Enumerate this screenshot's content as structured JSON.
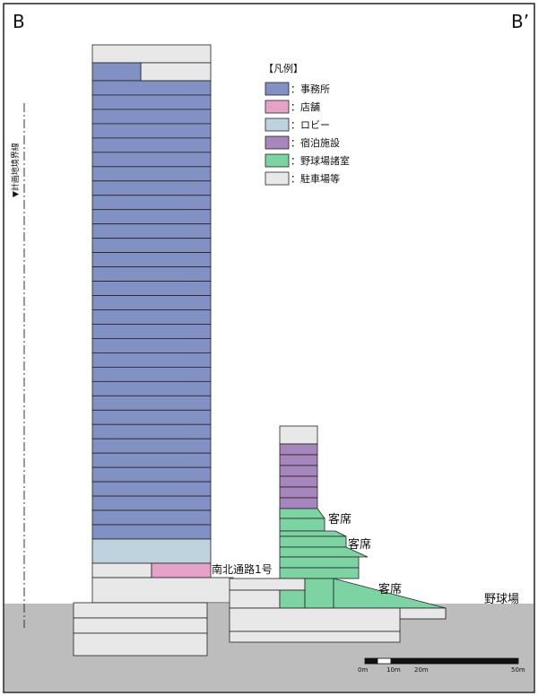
{
  "section": {
    "start_label": "B",
    "end_label": "B’"
  },
  "boundary_label": "▼計画地境界線",
  "legend": {
    "title": "【凡例】",
    "items": [
      {
        "label": "：事務所",
        "color": "#8191c4",
        "name": "legend-office"
      },
      {
        "label": "：店舗",
        "color": "#e5a3c7",
        "name": "legend-retail"
      },
      {
        "label": "：ロビー",
        "color": "#bfd3de",
        "name": "legend-lobby"
      },
      {
        "label": "：宿泊施設",
        "color": "#a686bd",
        "name": "legend-hotel"
      },
      {
        "label": "：野球場諸室",
        "color": "#7dd3a2",
        "name": "legend-ballpark-rooms"
      },
      {
        "label": "：駐車場等",
        "color": "#e8e8e8",
        "name": "legend-parking"
      }
    ]
  },
  "annotations": {
    "passage": "南北通路1号",
    "seats_1": "客席",
    "seats_2": "客席",
    "seats_3": "客席",
    "ballpark": "野球場"
  },
  "scale_bar": {
    "ticks": [
      "0m",
      "10m",
      "20m",
      "50m"
    ]
  },
  "colors": {
    "ground": "#bdbdbd",
    "office": "#8191c4",
    "retail": "#e5a3c7",
    "lobby": "#bfd3de",
    "hotel": "#a686bd",
    "ballpark": "#7dd3a2",
    "parking": "#e8e8e8",
    "outline": "#222222"
  }
}
